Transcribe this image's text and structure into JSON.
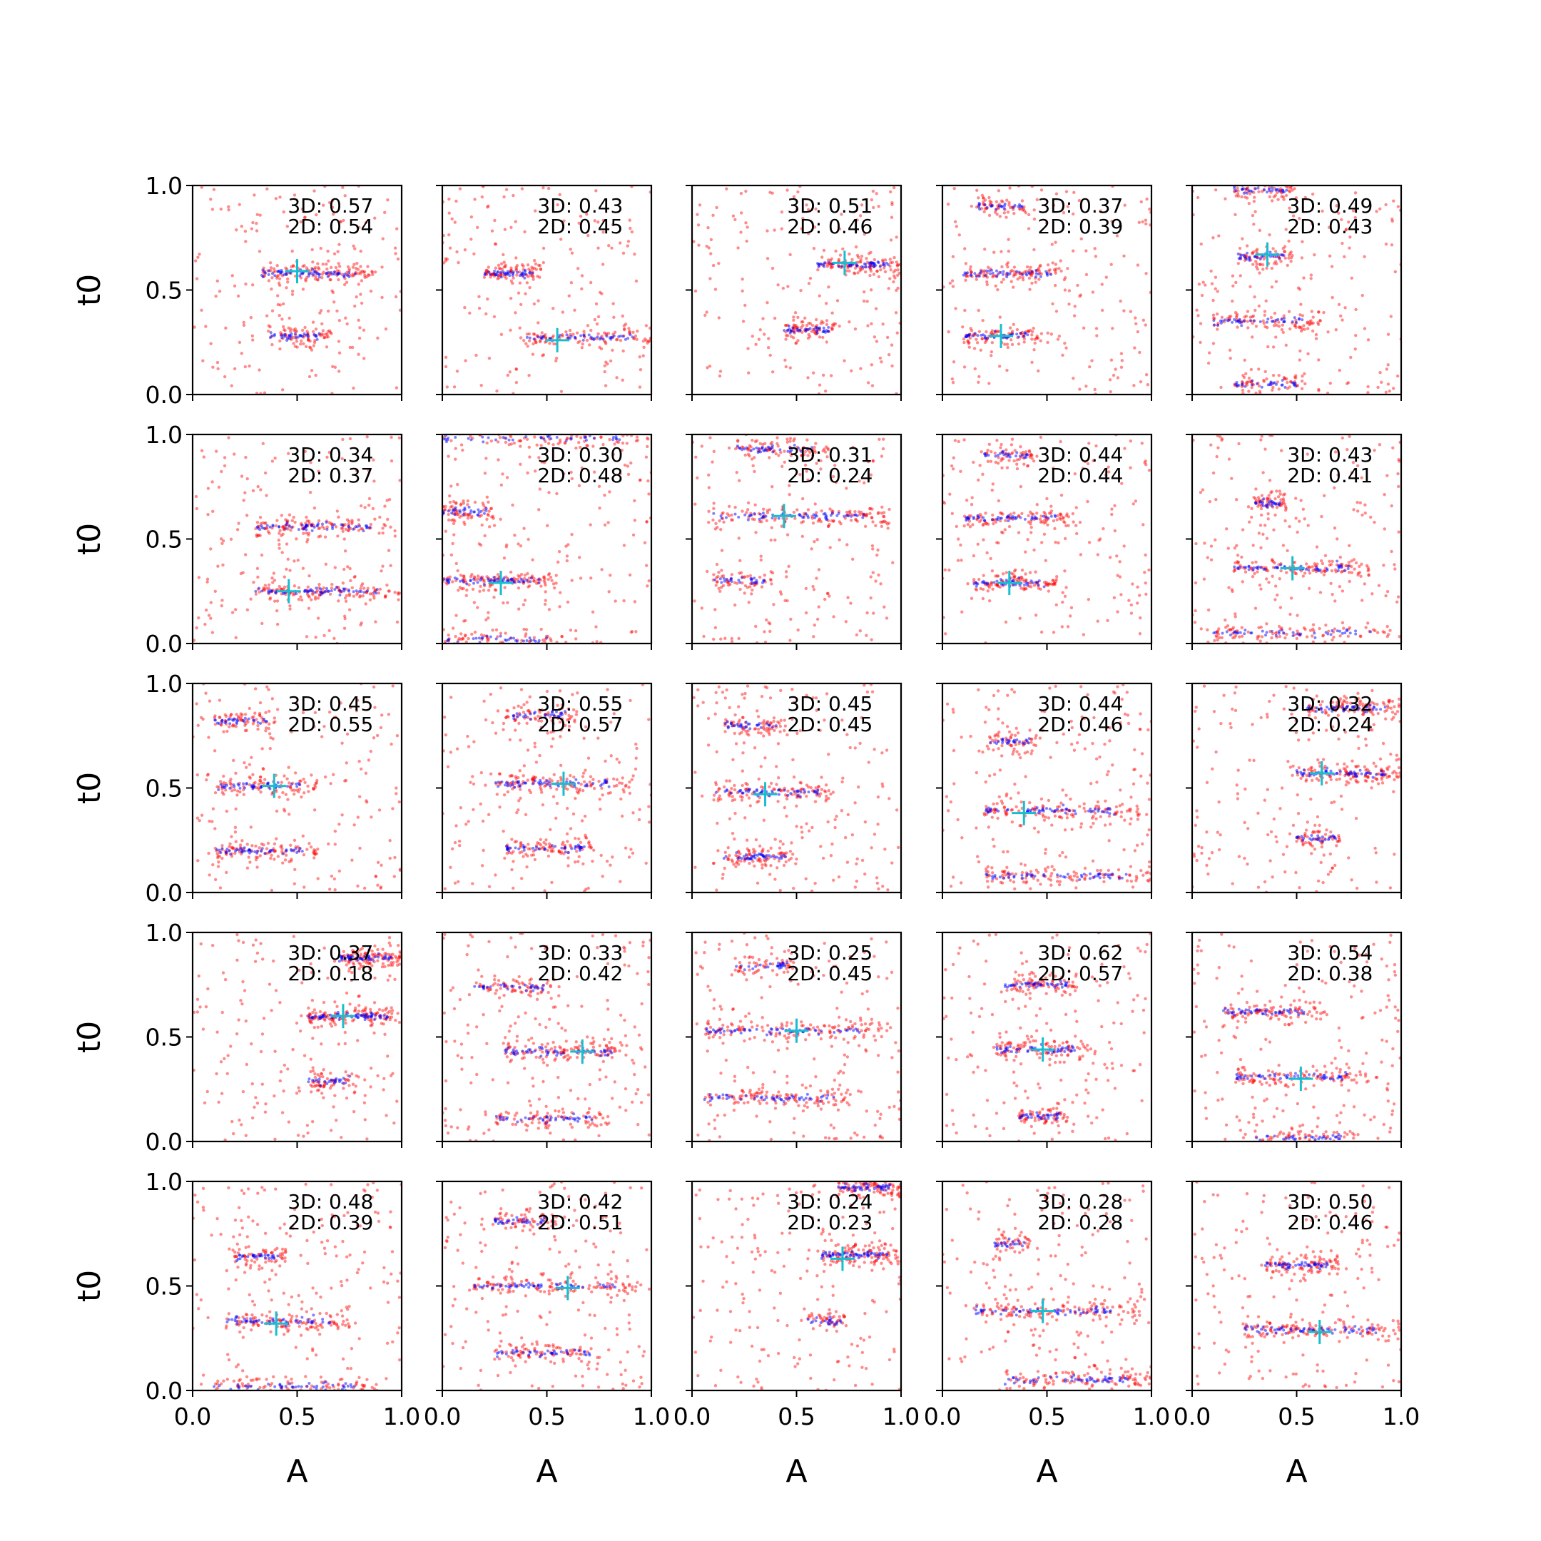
{
  "chart_data": {
    "type": "scatter",
    "layout": {
      "rows": 5,
      "cols": 5
    },
    "xlabel": "A",
    "ylabel": "t0",
    "xlim": [
      0,
      1
    ],
    "ylim": [
      0,
      1
    ],
    "xticks": [
      0.0,
      0.5,
      1.0
    ],
    "xtick_labels": [
      "0.0",
      "0.5",
      "1.0"
    ],
    "yticks": [
      0.0,
      0.5,
      1.0
    ],
    "ytick_labels": [
      "0.0",
      "0.5",
      "1.0"
    ],
    "grid": false,
    "colors": {
      "samples_3d": "#ff0000",
      "samples_2d": "#0000ff",
      "truth": "#17becf",
      "frame": "#000000"
    },
    "panels": [
      {
        "label_3d": "3D: 0.57",
        "label_2d": "2D: 0.54",
        "truth": [
          0.5,
          0.59
        ],
        "bands": [
          {
            "t0": 0.58,
            "amin": 0.33,
            "amax": 0.88,
            "n": 60
          },
          {
            "t0": 0.28,
            "amin": 0.36,
            "amax": 0.66,
            "n": 35
          }
        ]
      },
      {
        "label_3d": "3D: 0.43",
        "label_2d": "2D: 0.45",
        "truth": [
          0.55,
          0.26
        ],
        "bands": [
          {
            "t0": 0.58,
            "amin": 0.2,
            "amax": 0.48,
            "n": 40
          },
          {
            "t0": 0.27,
            "amin": 0.4,
            "amax": 1.0,
            "n": 45
          }
        ]
      },
      {
        "label_3d": "3D: 0.51",
        "label_2d": "2D: 0.46",
        "truth": [
          0.73,
          0.63
        ],
        "bands": [
          {
            "t0": 0.62,
            "amin": 0.6,
            "amax": 1.0,
            "n": 50
          },
          {
            "t0": 0.31,
            "amin": 0.44,
            "amax": 0.7,
            "n": 35
          }
        ]
      },
      {
        "label_3d": "3D: 0.37",
        "label_2d": "2D: 0.39",
        "truth": [
          0.28,
          0.28
        ],
        "bands": [
          {
            "t0": 0.9,
            "amin": 0.17,
            "amax": 0.42,
            "n": 25
          },
          {
            "t0": 0.58,
            "amin": 0.1,
            "amax": 0.6,
            "n": 45
          },
          {
            "t0": 0.28,
            "amin": 0.1,
            "amax": 0.48,
            "n": 40
          }
        ]
      },
      {
        "label_3d": "3D: 0.49",
        "label_2d": "2D: 0.43",
        "truth": [
          0.36,
          0.67
        ],
        "bands": [
          {
            "t0": 0.98,
            "amin": 0.2,
            "amax": 0.5,
            "n": 30
          },
          {
            "t0": 0.66,
            "amin": 0.22,
            "amax": 0.48,
            "n": 30
          },
          {
            "t0": 0.35,
            "amin": 0.1,
            "amax": 0.62,
            "n": 40
          },
          {
            "t0": 0.05,
            "amin": 0.2,
            "amax": 0.55,
            "n": 30
          }
        ]
      },
      {
        "label_3d": "3D: 0.34",
        "label_2d": "2D: 0.37",
        "truth": [
          0.46,
          0.25
        ],
        "bands": [
          {
            "t0": 0.56,
            "amin": 0.3,
            "amax": 0.95,
            "n": 55
          },
          {
            "t0": 0.25,
            "amin": 0.3,
            "amax": 1.0,
            "n": 60
          }
        ]
      },
      {
        "label_3d": "3D: 0.30",
        "label_2d": "2D: 0.48",
        "truth": [
          0.28,
          0.29
        ],
        "bands": [
          {
            "t0": 0.98,
            "amin": 0.0,
            "amax": 1.0,
            "n": 40
          },
          {
            "t0": 0.63,
            "amin": 0.0,
            "amax": 0.25,
            "n": 30
          },
          {
            "t0": 0.3,
            "amin": 0.0,
            "amax": 0.55,
            "n": 55
          },
          {
            "t0": 0.02,
            "amin": 0.0,
            "amax": 0.6,
            "n": 30
          }
        ]
      },
      {
        "label_3d": "3D: 0.31",
        "label_2d": "2D: 0.24",
        "truth": [
          0.44,
          0.61
        ],
        "bands": [
          {
            "t0": 0.93,
            "amin": 0.2,
            "amax": 0.65,
            "n": 35
          },
          {
            "t0": 0.61,
            "amin": 0.1,
            "amax": 0.95,
            "n": 60
          },
          {
            "t0": 0.3,
            "amin": 0.1,
            "amax": 0.4,
            "n": 25
          }
        ]
      },
      {
        "label_3d": "3D: 0.44",
        "label_2d": "2D: 0.44",
        "truth": [
          0.32,
          0.29
        ],
        "bands": [
          {
            "t0": 0.9,
            "amin": 0.2,
            "amax": 0.45,
            "n": 25
          },
          {
            "t0": 0.6,
            "amin": 0.1,
            "amax": 0.65,
            "n": 45
          },
          {
            "t0": 0.29,
            "amin": 0.15,
            "amax": 0.55,
            "n": 45
          }
        ]
      },
      {
        "label_3d": "3D: 0.43",
        "label_2d": "2D: 0.41",
        "truth": [
          0.48,
          0.36
        ],
        "bands": [
          {
            "t0": 0.67,
            "amin": 0.3,
            "amax": 0.45,
            "n": 25
          },
          {
            "t0": 0.36,
            "amin": 0.2,
            "amax": 0.85,
            "n": 55
          },
          {
            "t0": 0.05,
            "amin": 0.1,
            "amax": 1.0,
            "n": 45
          }
        ]
      },
      {
        "label_3d": "3D: 0.45",
        "label_2d": "2D: 0.55",
        "truth": [
          0.39,
          0.51
        ],
        "bands": [
          {
            "t0": 0.82,
            "amin": 0.1,
            "amax": 0.4,
            "n": 30
          },
          {
            "t0": 0.51,
            "amin": 0.1,
            "amax": 0.6,
            "n": 45
          },
          {
            "t0": 0.2,
            "amin": 0.1,
            "amax": 0.6,
            "n": 45
          }
        ]
      },
      {
        "label_3d": "3D: 0.55",
        "label_2d": "2D: 0.57",
        "truth": [
          0.58,
          0.52
        ],
        "bands": [
          {
            "t0": 0.85,
            "amin": 0.3,
            "amax": 0.65,
            "n": 30
          },
          {
            "t0": 0.52,
            "amin": 0.25,
            "amax": 0.9,
            "n": 55
          },
          {
            "t0": 0.21,
            "amin": 0.3,
            "amax": 0.75,
            "n": 40
          }
        ]
      },
      {
        "label_3d": "3D: 0.45",
        "label_2d": "2D: 0.45",
        "truth": [
          0.35,
          0.47
        ],
        "bands": [
          {
            "t0": 0.8,
            "amin": 0.15,
            "amax": 0.45,
            "n": 30
          },
          {
            "t0": 0.48,
            "amin": 0.1,
            "amax": 0.7,
            "n": 50
          },
          {
            "t0": 0.17,
            "amin": 0.15,
            "amax": 0.5,
            "n": 40
          }
        ]
      },
      {
        "label_3d": "3D: 0.44",
        "label_2d": "2D: 0.46",
        "truth": [
          0.39,
          0.38
        ],
        "bands": [
          {
            "t0": 0.72,
            "amin": 0.22,
            "amax": 0.45,
            "n": 25
          },
          {
            "t0": 0.39,
            "amin": 0.2,
            "amax": 0.95,
            "n": 55
          },
          {
            "t0": 0.08,
            "amin": 0.2,
            "amax": 1.0,
            "n": 50
          }
        ]
      },
      {
        "label_3d": "3D: 0.32",
        "label_2d": "2D: 0.24",
        "truth": [
          0.62,
          0.57
        ],
        "bands": [
          {
            "t0": 0.88,
            "amin": 0.55,
            "amax": 1.0,
            "n": 45
          },
          {
            "t0": 0.57,
            "amin": 0.5,
            "amax": 1.0,
            "n": 55
          },
          {
            "t0": 0.26,
            "amin": 0.5,
            "amax": 0.72,
            "n": 25
          }
        ]
      },
      {
        "label_3d": "3D: 0.37",
        "label_2d": "2D: 0.18",
        "truth": [
          0.72,
          0.6
        ],
        "bands": [
          {
            "t0": 0.88,
            "amin": 0.7,
            "amax": 1.0,
            "n": 50
          },
          {
            "t0": 0.6,
            "amin": 0.55,
            "amax": 1.0,
            "n": 60
          },
          {
            "t0": 0.29,
            "amin": 0.55,
            "amax": 0.8,
            "n": 25
          }
        ]
      },
      {
        "label_3d": "3D: 0.33",
        "label_2d": "2D: 0.42",
        "truth": [
          0.67,
          0.43
        ],
        "bands": [
          {
            "t0": 0.74,
            "amin": 0.15,
            "amax": 0.55,
            "n": 30
          },
          {
            "t0": 0.43,
            "amin": 0.3,
            "amax": 0.9,
            "n": 55
          },
          {
            "t0": 0.11,
            "amin": 0.25,
            "amax": 0.8,
            "n": 40
          }
        ]
      },
      {
        "label_3d": "3D: 0.25",
        "label_2d": "2D: 0.45",
        "truth": [
          0.5,
          0.53
        ],
        "bands": [
          {
            "t0": 0.84,
            "amin": 0.2,
            "amax": 0.5,
            "n": 25
          },
          {
            "t0": 0.53,
            "amin": 0.05,
            "amax": 0.95,
            "n": 60
          },
          {
            "t0": 0.21,
            "amin": 0.05,
            "amax": 0.8,
            "n": 50
          }
        ]
      },
      {
        "label_3d": "3D: 0.62",
        "label_2d": "2D: 0.57",
        "truth": [
          0.48,
          0.44
        ],
        "bands": [
          {
            "t0": 0.75,
            "amin": 0.3,
            "amax": 0.65,
            "n": 40
          },
          {
            "t0": 0.44,
            "amin": 0.25,
            "amax": 0.7,
            "n": 45
          },
          {
            "t0": 0.12,
            "amin": 0.35,
            "amax": 0.6,
            "n": 30
          }
        ]
      },
      {
        "label_3d": "3D: 0.54",
        "label_2d": "2D: 0.38",
        "truth": [
          0.52,
          0.3
        ],
        "bands": [
          {
            "t0": 0.62,
            "amin": 0.15,
            "amax": 0.65,
            "n": 45
          },
          {
            "t0": 0.31,
            "amin": 0.2,
            "amax": 0.85,
            "n": 50
          },
          {
            "t0": 0.02,
            "amin": 0.3,
            "amax": 0.8,
            "n": 30
          }
        ]
      },
      {
        "label_3d": "3D: 0.48",
        "label_2d": "2D: 0.39",
        "truth": [
          0.4,
          0.32
        ],
        "bands": [
          {
            "t0": 0.64,
            "amin": 0.2,
            "amax": 0.45,
            "n": 30
          },
          {
            "t0": 0.33,
            "amin": 0.15,
            "amax": 0.75,
            "n": 50
          },
          {
            "t0": 0.02,
            "amin": 0.1,
            "amax": 0.9,
            "n": 45
          }
        ]
      },
      {
        "label_3d": "3D: 0.42",
        "label_2d": "2D: 0.51",
        "truth": [
          0.6,
          0.49
        ],
        "bands": [
          {
            "t0": 0.81,
            "amin": 0.25,
            "amax": 0.55,
            "n": 30
          },
          {
            "t0": 0.5,
            "amin": 0.15,
            "amax": 0.95,
            "n": 55
          },
          {
            "t0": 0.18,
            "amin": 0.25,
            "amax": 0.8,
            "n": 40
          }
        ]
      },
      {
        "label_3d": "3D: 0.24",
        "label_2d": "2D: 0.23",
        "truth": [
          0.72,
          0.63
        ],
        "bands": [
          {
            "t0": 0.97,
            "amin": 0.7,
            "amax": 1.0,
            "n": 45
          },
          {
            "t0": 0.65,
            "amin": 0.62,
            "amax": 1.0,
            "n": 55
          },
          {
            "t0": 0.33,
            "amin": 0.55,
            "amax": 0.75,
            "n": 20
          }
        ]
      },
      {
        "label_3d": "3D: 0.28",
        "label_2d": "2D: 0.28",
        "truth": [
          0.48,
          0.38
        ],
        "bands": [
          {
            "t0": 0.7,
            "amin": 0.25,
            "amax": 0.42,
            "n": 20
          },
          {
            "t0": 0.38,
            "amin": 0.15,
            "amax": 0.95,
            "n": 55
          },
          {
            "t0": 0.05,
            "amin": 0.3,
            "amax": 1.0,
            "n": 50
          }
        ]
      },
      {
        "label_3d": "3D: 0.50",
        "label_2d": "2D: 0.46",
        "truth": [
          0.61,
          0.28
        ],
        "bands": [
          {
            "t0": 0.6,
            "amin": 0.35,
            "amax": 0.7,
            "n": 45
          },
          {
            "t0": 0.29,
            "amin": 0.25,
            "amax": 1.0,
            "n": 60
          }
        ]
      }
    ]
  }
}
